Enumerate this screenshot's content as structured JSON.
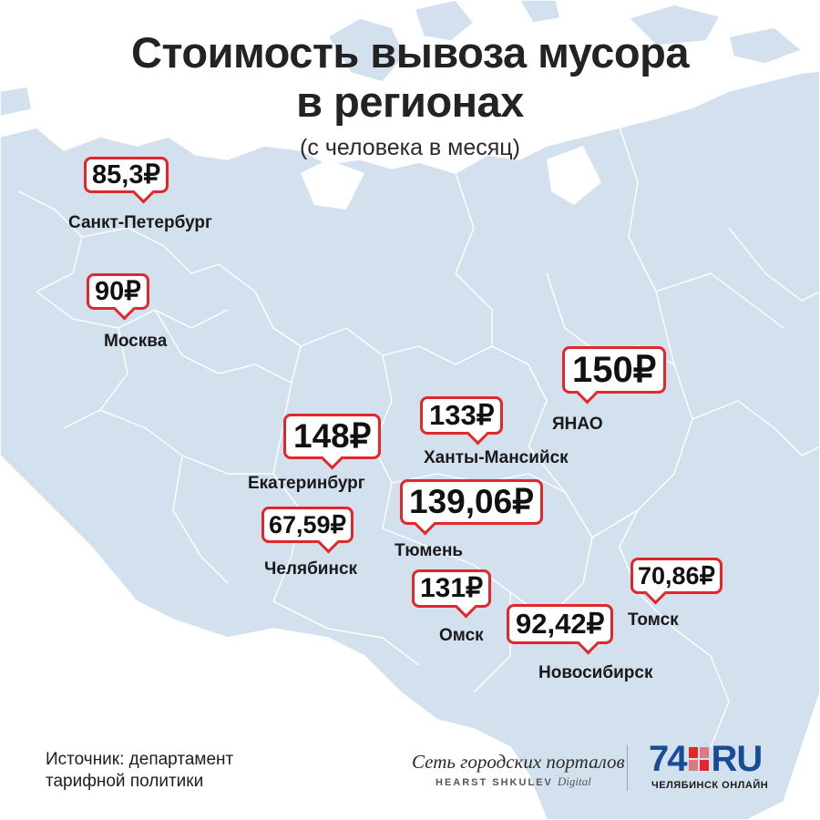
{
  "header": {
    "title_line1": "Стоимость вывоза мусора",
    "title_line2": "в регионах",
    "subtitle": "(с человека в месяц)"
  },
  "regions": [
    {
      "city": "Санкт-Петербург",
      "price": "85,3₽"
    },
    {
      "city": "Москва",
      "price": "90₽"
    },
    {
      "city": "ЯНАО",
      "price": "150₽"
    },
    {
      "city": "Ханты-Мансийск",
      "price": "133₽"
    },
    {
      "city": "Екатеринбург",
      "price": "148₽"
    },
    {
      "city": "Тюмень",
      "price": "139,06₽"
    },
    {
      "city": "Челябинск",
      "price": "67,59₽"
    },
    {
      "city": "Омск",
      "price": "131₽"
    },
    {
      "city": "Томск",
      "price": "70,86₽"
    },
    {
      "city": "Новосибирск",
      "price": "92,42₽"
    }
  ],
  "footer": {
    "source_line1": "Источник: департамент",
    "source_line2": "тарифной политики",
    "network_name": "Сеть городских порталов",
    "network_sub": "HEARST SHKULEV",
    "network_sub_italic": "Digital",
    "logo_number": "74",
    "logo_ru": "RU",
    "logo_caption": "ЧЕЛЯБИНСК ОНЛАЙН"
  },
  "colors": {
    "land": "#d3e1ef",
    "border": "#ffffff",
    "accent": "#e3262a",
    "logo_blue": "#1a4b97"
  }
}
